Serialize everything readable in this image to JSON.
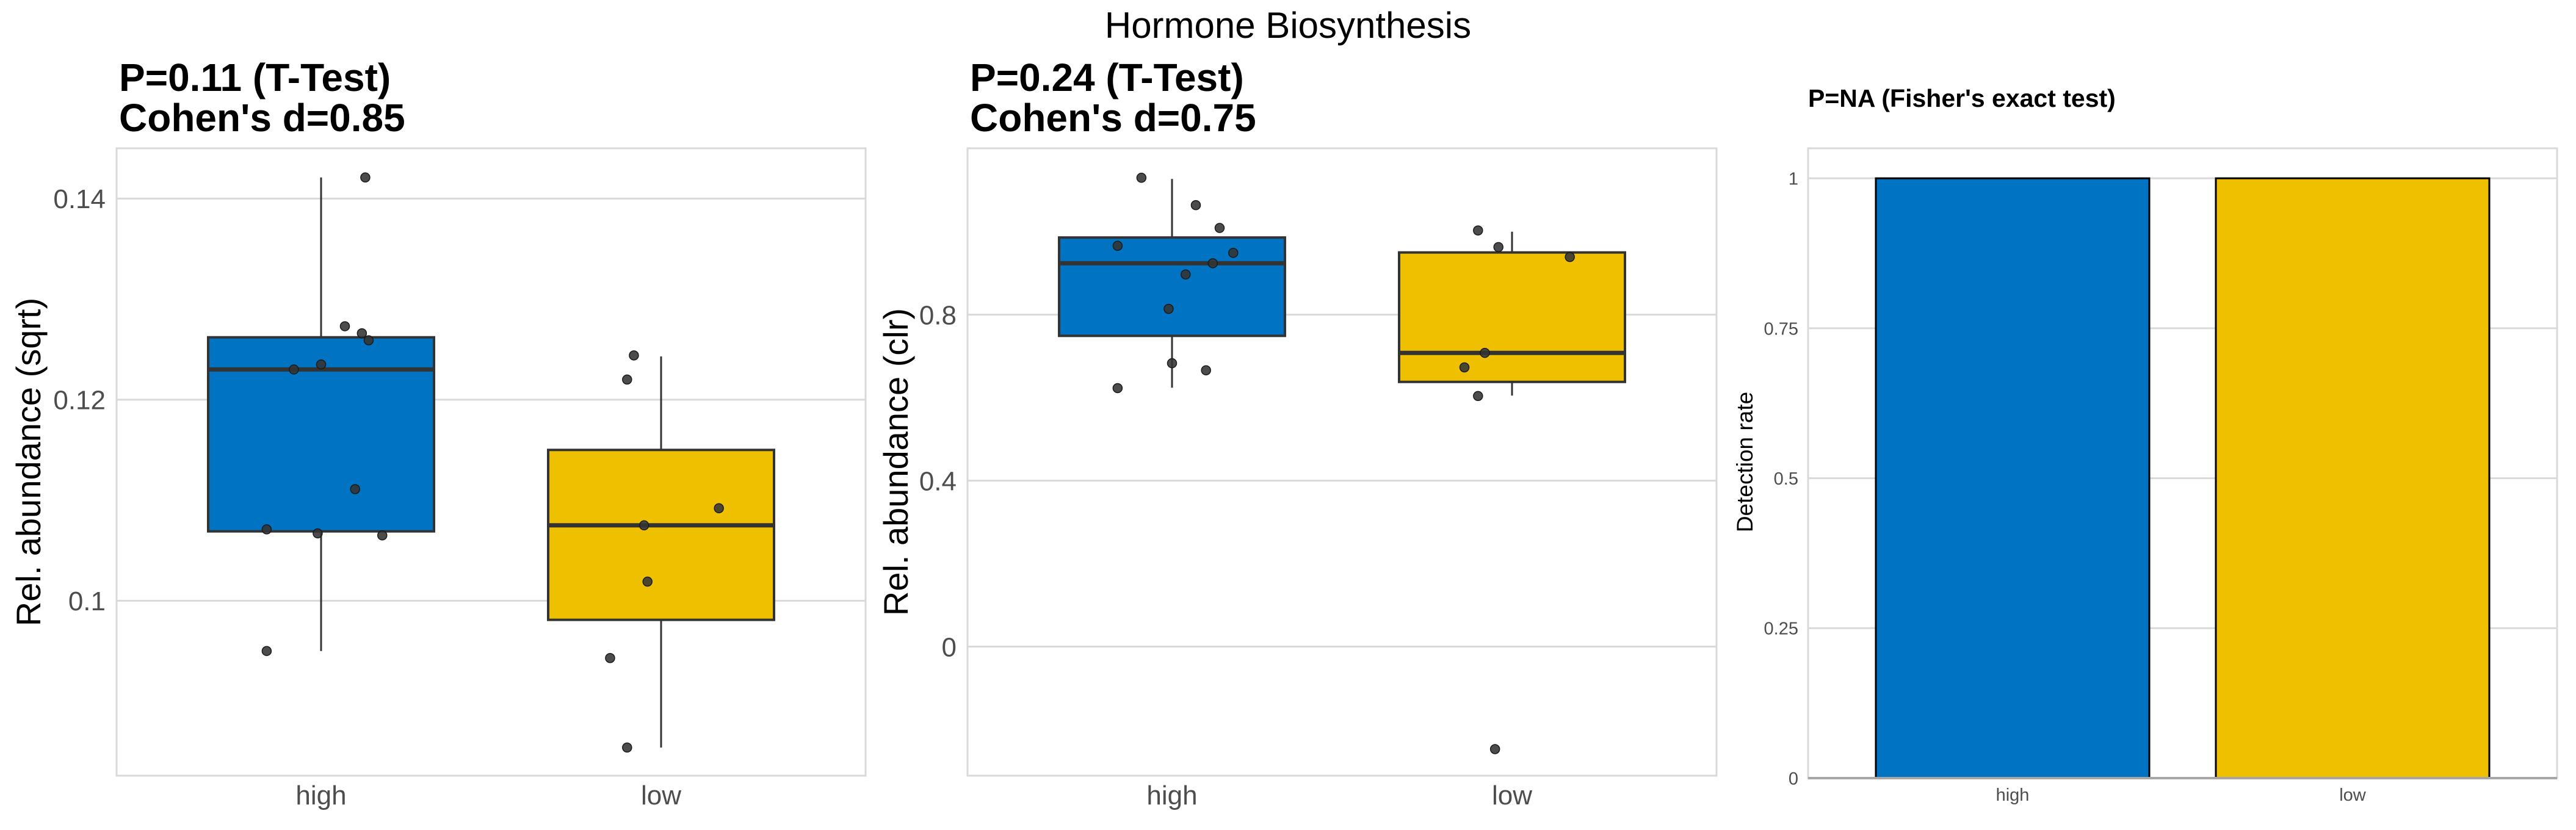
{
  "title": "Hormone Biosynthesis",
  "colors": {
    "high": "#0073C2",
    "low": "#EFC000",
    "point": "#333333",
    "grid": "#d9d9d9",
    "box_outline": "#333333"
  },
  "chart_data": [
    {
      "type": "box",
      "subtitle_lines": [
        "P=0.11 (T-Test)",
        "Cohen's d=0.85"
      ],
      "xlabel": "",
      "ylabel": "Rel. abundance (sqrt)",
      "categories": [
        "high",
        "low"
      ],
      "ylim": [
        0.0826,
        0.145
      ],
      "yticks": [
        0.1,
        0.12,
        0.14
      ],
      "ytick_labels": [
        "0.1",
        "0.12",
        "0.14"
      ],
      "grid": true,
      "boxes": [
        {
          "group": "high",
          "whisker_low": 0.095,
          "q1": 0.1069,
          "median": 0.123,
          "q3": 0.1262,
          "whisker_high": 0.1421
        },
        {
          "group": "low",
          "whisker_low": 0.0854,
          "q1": 0.0981,
          "median": 0.1075,
          "q3": 0.115,
          "whisker_high": 0.1243
        }
      ],
      "points": [
        {
          "group": "high",
          "values": [
            0.1421,
            0.1273,
            0.1266,
            0.1259,
            0.1235,
            0.123,
            0.1111,
            0.1071,
            0.1067,
            0.1065,
            0.095
          ],
          "jitter": [
            0.13,
            0.07,
            0.12,
            0.14,
            0.0,
            -0.08,
            0.1,
            -0.16,
            -0.01,
            0.18,
            -0.16
          ]
        },
        {
          "group": "low",
          "values": [
            0.1244,
            0.122,
            0.1092,
            0.1075,
            0.1019,
            0.0943,
            0.0854
          ],
          "jitter": [
            -0.08,
            -0.1,
            0.17,
            -0.05,
            -0.04,
            -0.15,
            -0.1
          ]
        }
      ]
    },
    {
      "type": "box",
      "subtitle_lines": [
        "P=0.24 (T-Test)",
        "Cohen's d=0.75"
      ],
      "xlabel": "",
      "ylabel": "Rel. abundance (clr)",
      "categories": [
        "high",
        "low"
      ],
      "ylim": [
        -0.311,
        1.201
      ],
      "yticks": [
        0,
        0.4,
        0.8
      ],
      "ytick_labels": [
        "0",
        "0.4",
        "0.8"
      ],
      "grid": true,
      "boxes": [
        {
          "group": "high",
          "whisker_low": 0.624,
          "q1": 0.749,
          "median": 0.924,
          "q3": 0.986,
          "whisker_high": 1.127
        },
        {
          "group": "low",
          "whisker_low": 0.605,
          "q1": 0.638,
          "median": 0.708,
          "q3": 0.95,
          "whisker_high": 1.0
        }
      ],
      "points": [
        {
          "group": "high",
          "values": [
            1.13,
            1.064,
            1.009,
            0.966,
            0.949,
            0.924,
            0.897,
            0.814,
            0.683,
            0.666,
            0.623
          ],
          "jitter": [
            -0.09,
            0.07,
            0.14,
            -0.16,
            0.18,
            0.12,
            0.04,
            -0.01,
            0.0,
            0.1,
            -0.16
          ]
        },
        {
          "group": "low",
          "values": [
            1.003,
            0.963,
            0.939,
            0.708,
            0.673,
            0.604,
            -0.247
          ],
          "jitter": [
            -0.1,
            -0.04,
            0.17,
            -0.08,
            -0.14,
            -0.1,
            -0.05
          ]
        }
      ]
    },
    {
      "type": "bar",
      "subtitle_lines": [
        "P=NA (Fisher's exact test)"
      ],
      "xlabel": "",
      "ylabel": "Detection rate",
      "categories": [
        "high",
        "low"
      ],
      "values": [
        1,
        1
      ],
      "ylim": [
        0,
        1.05
      ],
      "yticks": [
        0,
        0.25,
        0.5,
        0.75,
        1
      ],
      "ytick_labels": [
        "0",
        "0.25",
        "0.5",
        "0.75",
        "1"
      ],
      "grid": true
    }
  ]
}
